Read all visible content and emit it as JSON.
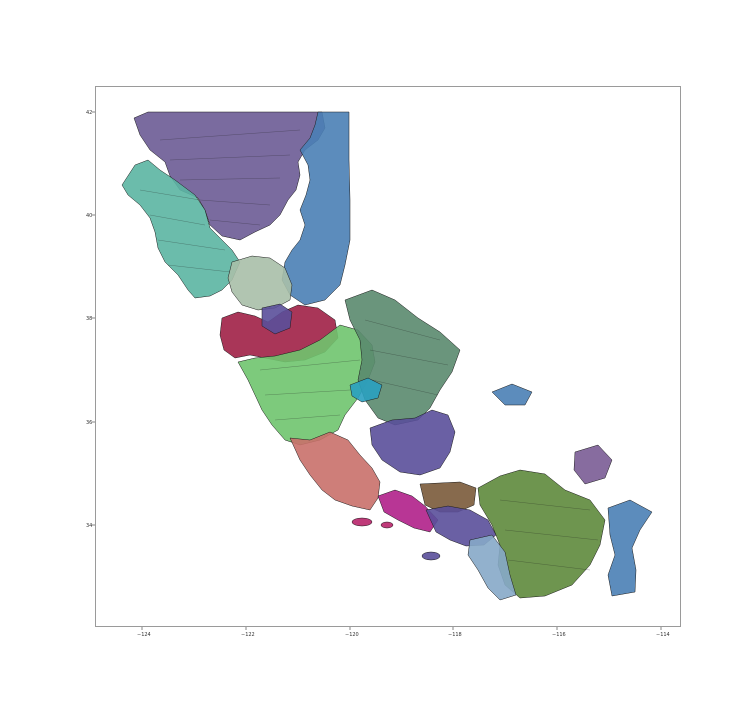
{
  "map": {
    "x_ticks": [
      "−124",
      "−122",
      "−120",
      "−118",
      "−116",
      "−114"
    ],
    "y_ticks": [
      "42",
      "40",
      "38",
      "36",
      "34"
    ],
    "region_colors": {
      "north_purple": "#6b5b95",
      "northeast_blue": "#4a7fb5",
      "northwest_teal": "#5bb5a2",
      "sac_sage": "#a9bfa8",
      "bay_crimson": "#a02046",
      "central_green": "#6fc46e",
      "sierra_slate": "#5a8a6e",
      "central_violet": "#5a4f9a",
      "coast_salmon": "#c9706a",
      "la_brown": "#7a5a3a",
      "socal_olive": "#5e8a3c",
      "sd_lightblue": "#86a9c8",
      "magenta": "#b0208a",
      "teal_small": "#2aa0c0",
      "ocean_island": "#b8256a",
      "desert_purple": "#7a5c95"
    }
  }
}
